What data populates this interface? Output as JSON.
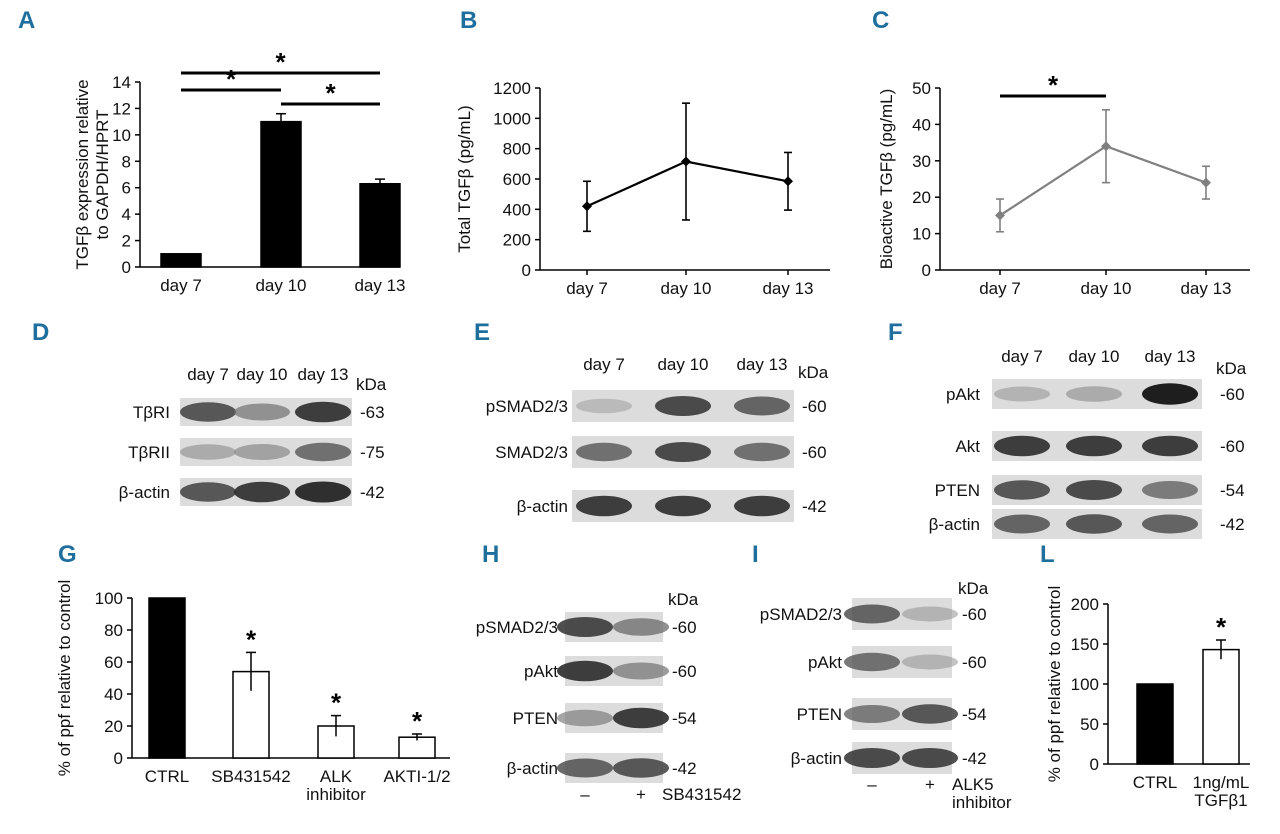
{
  "panels": {
    "A": "A",
    "B": "B",
    "C": "C",
    "D": "D",
    "E": "E",
    "F": "F",
    "G": "G",
    "H": "H",
    "I": "I",
    "L": "L"
  },
  "star": "*",
  "chart_data": [
    {
      "panel": "A",
      "type": "bar",
      "categories": [
        "day 7",
        "day 10",
        "day 13"
      ],
      "values": [
        1,
        11,
        6.3
      ],
      "errors": [
        0,
        0.6,
        0.35
      ],
      "ylabel": "TGFβ expression relative to GAPDH/HPRT",
      "ylabel_lines": [
        "TGFβ expression relative",
        "to GAPDH/HPRT"
      ],
      "ylim": [
        0,
        14
      ],
      "yticks": [
        0,
        2,
        4,
        6,
        8,
        10,
        12,
        14
      ],
      "bar_color": "#000000",
      "bar_fill": "#000000",
      "significance": [
        {
          "from": 0,
          "to": 2,
          "label": "*"
        },
        {
          "from": 0,
          "to": 1,
          "label": "*"
        },
        {
          "from": 1,
          "to": 2,
          "label": "*"
        }
      ]
    },
    {
      "panel": "B",
      "type": "line",
      "categories": [
        "day 7",
        "day 10",
        "day 13"
      ],
      "values": [
        420,
        715,
        585
      ],
      "errors": [
        165,
        385,
        190
      ],
      "ylabel": "Total TGFβ (pg/mL)",
      "ylim": [
        0,
        1200
      ],
      "yticks": [
        0,
        200,
        400,
        600,
        800,
        1000,
        1200
      ],
      "color": "#000000"
    },
    {
      "panel": "C",
      "type": "line",
      "categories": [
        "day 7",
        "day 10",
        "day 13"
      ],
      "values": [
        15,
        34,
        24
      ],
      "errors": [
        4.5,
        10,
        4.5
      ],
      "ylabel": "Bioactive TGFβ (pg/mL)",
      "ylim": [
        0,
        50
      ],
      "yticks": [
        0,
        10,
        20,
        30,
        40,
        50
      ],
      "color": "#808080",
      "significance": [
        {
          "from": 0,
          "to": 1,
          "label": "*"
        }
      ]
    },
    {
      "panel": "G",
      "type": "bar",
      "categories": [
        "CTRL",
        "SB431542",
        "ALK inhibitor",
        "AKTI-1/2"
      ],
      "category_lines": [
        [
          "CTRL"
        ],
        [
          "SB431542"
        ],
        [
          "ALK",
          "inhibitor"
        ],
        [
          "AKTI-1/2"
        ]
      ],
      "values": [
        100,
        54,
        20,
        13
      ],
      "errors": [
        0,
        12,
        6.5,
        2
      ],
      "ylabel": "% of ppf relative to control",
      "ylim": [
        0,
        100
      ],
      "yticks": [
        0,
        20,
        40,
        60,
        80,
        100
      ],
      "fills": [
        "#000000",
        "#ffffff",
        "#ffffff",
        "#ffffff"
      ],
      "bar_color": "#000000",
      "stars": [
        false,
        true,
        true,
        true
      ]
    },
    {
      "panel": "L",
      "type": "bar",
      "categories": [
        "CTRL",
        "1ng/mL TGFβ1"
      ],
      "category_lines": [
        [
          "CTRL"
        ],
        [
          "1ng/mL",
          "TGFβ1"
        ]
      ],
      "values": [
        100,
        143
      ],
      "errors": [
        0,
        12
      ],
      "ylabel": "% of ppf relative to control",
      "ylim": [
        0,
        200
      ],
      "yticks": [
        0,
        50,
        100,
        150,
        200
      ],
      "fills": [
        "#000000",
        "#ffffff"
      ],
      "bar_color": "#000000",
      "stars": [
        false,
        true
      ]
    }
  ],
  "blots": [
    {
      "panel": "D",
      "columns": [
        "day 7",
        "day 10",
        "day 13"
      ],
      "kda_label": "kDa",
      "rows": [
        {
          "label": "TβRI",
          "kda": "-63",
          "intensity": [
            0.75,
            0.5,
            0.85
          ]
        },
        {
          "label": "TβRII",
          "kda": "-75",
          "intensity": [
            0.35,
            0.4,
            0.65
          ]
        },
        {
          "label": "β-actin",
          "kda": "-42",
          "intensity": [
            0.75,
            0.85,
            0.9
          ]
        }
      ]
    },
    {
      "panel": "E",
      "columns": [
        "day 7",
        "day 10",
        "day 13"
      ],
      "kda_label": "kDa",
      "rows": [
        {
          "label": "pSMAD2/3",
          "kda": "-60",
          "intensity": [
            0.25,
            0.8,
            0.7
          ]
        },
        {
          "label": "SMAD2/3",
          "kda": "-60",
          "intensity": [
            0.65,
            0.8,
            0.65
          ]
        },
        {
          "label": "β-actin",
          "kda": "-42",
          "intensity": [
            0.85,
            0.85,
            0.85
          ]
        }
      ]
    },
    {
      "panel": "F",
      "columns": [
        "day 7",
        "day 10",
        "day 13"
      ],
      "kda_label": "kDa",
      "rows": [
        {
          "label": "pAkt",
          "kda": "-60",
          "intensity": [
            0.3,
            0.35,
            0.95
          ]
        },
        {
          "label": "Akt",
          "kda": "-60",
          "intensity": [
            0.85,
            0.85,
            0.85
          ]
        },
        {
          "label": "PTEN",
          "kda": "-54",
          "intensity": [
            0.75,
            0.8,
            0.6
          ]
        },
        {
          "label": "β-actin",
          "kda": "-42",
          "intensity": [
            0.7,
            0.75,
            0.7
          ]
        }
      ]
    },
    {
      "panel": "H",
      "kda_label": "kDa",
      "rows": [
        {
          "label": "pSMAD2/3",
          "kda": "-60",
          "intensity": [
            0.8,
            0.55
          ]
        },
        {
          "label": "pAkt",
          "kda": "-60",
          "intensity": [
            0.85,
            0.5
          ]
        },
        {
          "label": "PTEN",
          "kda": "-54",
          "intensity": [
            0.45,
            0.85
          ]
        },
        {
          "label": "β-actin",
          "kda": "-42",
          "intensity": [
            0.7,
            0.75
          ]
        }
      ],
      "bottom_marks": [
        "–",
        "+"
      ],
      "treatment": [
        "SB431542"
      ]
    },
    {
      "panel": "I",
      "kda_label": "kDa",
      "rows": [
        {
          "label": "pSMAD2/3",
          "kda": "-60",
          "intensity": [
            0.7,
            0.3
          ]
        },
        {
          "label": "pAkt",
          "kda": "-60",
          "intensity": [
            0.65,
            0.3
          ]
        },
        {
          "label": "PTEN",
          "kda": "-54",
          "intensity": [
            0.6,
            0.75
          ]
        },
        {
          "label": "β-actin",
          "kda": "-42",
          "intensity": [
            0.8,
            0.8
          ]
        }
      ],
      "bottom_marks": [
        "–",
        "+"
      ],
      "treatment": [
        "ALK5",
        "inhibitor"
      ]
    }
  ]
}
